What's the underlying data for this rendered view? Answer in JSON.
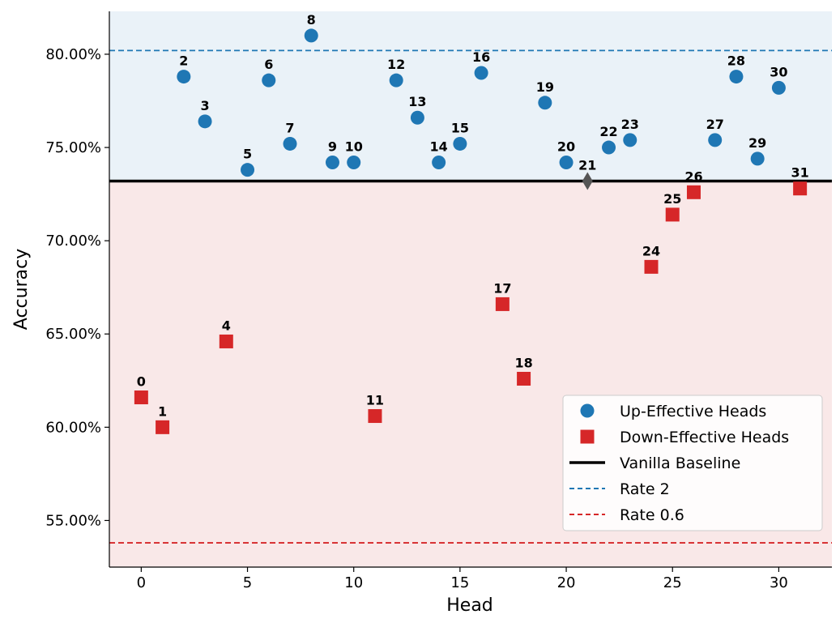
{
  "chart_data": {
    "type": "scatter",
    "xlabel": "Head",
    "ylabel": "Accuracy",
    "xlim": [
      -1.5,
      32.5
    ],
    "ylim": [
      52.5,
      82.3
    ],
    "x_ticks": [
      0,
      5,
      10,
      15,
      20,
      25,
      30
    ],
    "y_ticks": [
      55,
      60,
      65,
      70,
      75,
      80
    ],
    "y_tick_format": "percent_2dp",
    "baseline": {
      "name": "Vanilla Baseline",
      "value": 73.2,
      "color": "#000000"
    },
    "reference_lines": [
      {
        "name": "Rate 2",
        "value": 80.2,
        "color": "#1f77b4",
        "style": "dashed"
      },
      {
        "name": "Rate 0.6",
        "value": 53.8,
        "color": "#d62728",
        "style": "dashed"
      }
    ],
    "background_regions": [
      {
        "above_baseline": true,
        "color": "#eaf2f8"
      },
      {
        "above_baseline": false,
        "color": "#f9e8e8"
      }
    ],
    "series": [
      {
        "name": "Up-Effective Heads",
        "marker": "circle",
        "color": "#1f77b4",
        "points": [
          {
            "x": 2,
            "y": 78.8,
            "label": "2"
          },
          {
            "x": 3,
            "y": 76.4,
            "label": "3"
          },
          {
            "x": 5,
            "y": 73.8,
            "label": "5"
          },
          {
            "x": 6,
            "y": 78.6,
            "label": "6"
          },
          {
            "x": 7,
            "y": 75.2,
            "label": "7"
          },
          {
            "x": 8,
            "y": 81.0,
            "label": "8"
          },
          {
            "x": 9,
            "y": 74.2,
            "label": "9"
          },
          {
            "x": 10,
            "y": 74.2,
            "label": "10"
          },
          {
            "x": 12,
            "y": 78.6,
            "label": "12"
          },
          {
            "x": 13,
            "y": 76.6,
            "label": "13"
          },
          {
            "x": 14,
            "y": 74.2,
            "label": "14"
          },
          {
            "x": 15,
            "y": 75.2,
            "label": "15"
          },
          {
            "x": 16,
            "y": 79.0,
            "label": "16"
          },
          {
            "x": 19,
            "y": 77.4,
            "label": "19"
          },
          {
            "x": 20,
            "y": 74.2,
            "label": "20"
          },
          {
            "x": 22,
            "y": 75.0,
            "label": "22"
          },
          {
            "x": 23,
            "y": 75.4,
            "label": "23"
          },
          {
            "x": 27,
            "y": 75.4,
            "label": "27"
          },
          {
            "x": 28,
            "y": 78.8,
            "label": "28"
          },
          {
            "x": 29,
            "y": 74.4,
            "label": "29"
          },
          {
            "x": 30,
            "y": 78.2,
            "label": "30"
          }
        ]
      },
      {
        "name": "Down-Effective Heads",
        "marker": "square",
        "color": "#d62728",
        "points": [
          {
            "x": 0,
            "y": 61.6,
            "label": "0"
          },
          {
            "x": 1,
            "y": 60.0,
            "label": "1"
          },
          {
            "x": 4,
            "y": 64.6,
            "label": "4"
          },
          {
            "x": 11,
            "y": 60.6,
            "label": "11"
          },
          {
            "x": 17,
            "y": 66.6,
            "label": "17"
          },
          {
            "x": 18,
            "y": 62.6,
            "label": "18"
          },
          {
            "x": 24,
            "y": 68.6,
            "label": "24"
          },
          {
            "x": 25,
            "y": 71.4,
            "label": "25"
          },
          {
            "x": 26,
            "y": 72.6,
            "label": "26"
          },
          {
            "x": 31,
            "y": 72.8,
            "label": "31"
          }
        ]
      },
      {
        "name": "Neutral Head",
        "marker": "diamond",
        "color": "#555555",
        "in_legend": false,
        "points": [
          {
            "x": 21,
            "y": 73.2,
            "label": "21"
          }
        ]
      }
    ],
    "legend": {
      "position": "lower-right",
      "entries": [
        {
          "name": "Up-Effective Heads",
          "symbol": "circle",
          "color": "#1f77b4"
        },
        {
          "name": "Down-Effective Heads",
          "symbol": "square",
          "color": "#d62728"
        },
        {
          "name": "Vanilla Baseline",
          "symbol": "solid-line",
          "color": "#000000"
        },
        {
          "name": "Rate 2",
          "symbol": "dashed-line",
          "color": "#1f77b4"
        },
        {
          "name": "Rate 0.6",
          "symbol": "dashed-line",
          "color": "#d62728"
        }
      ]
    }
  }
}
